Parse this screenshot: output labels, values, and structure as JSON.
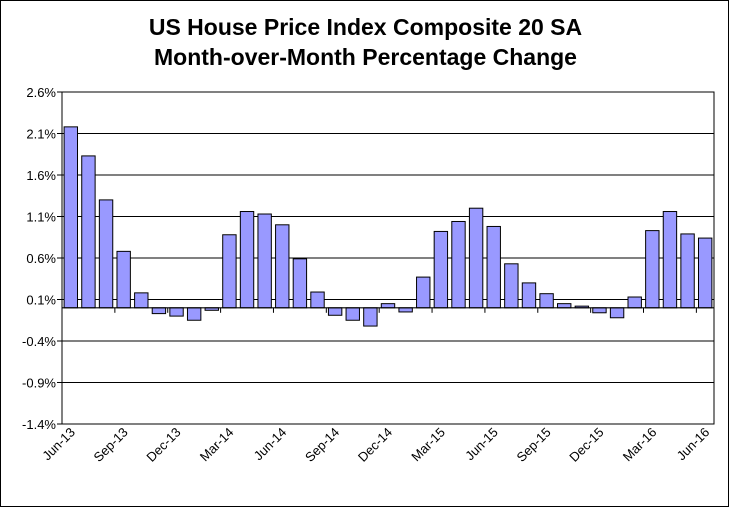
{
  "chart_data": {
    "type": "bar",
    "title": "US House Price Index Composite 20 SA",
    "subtitle": "Month-over-Month Percentage Change",
    "xlabel": "",
    "ylabel": "",
    "ylim": [
      -1.4,
      2.6
    ],
    "yticks": [
      "2.6%",
      "2.1%",
      "1.6%",
      "1.1%",
      "0.6%",
      "0.1%",
      "-0.4%",
      "-0.9%",
      "-1.4%"
    ],
    "xtick_labels": [
      "Jun-13",
      "Sep-13",
      "Dec-13",
      "Mar-14",
      "Jun-14",
      "Sep-14",
      "Dec-14",
      "Mar-15",
      "Jun-15",
      "Sep-15",
      "Dec-15",
      "Mar-16",
      "Jun-16"
    ],
    "grid": true,
    "bar_color": "#9999ff",
    "categories": [
      "Jun-13",
      "Jul-13",
      "Aug-13",
      "Sep-13",
      "Oct-13",
      "Nov-13",
      "Dec-13",
      "Jan-14",
      "Feb-14",
      "Mar-14",
      "Apr-14",
      "May-14",
      "Jun-14",
      "Jul-14",
      "Aug-14",
      "Sep-14",
      "Oct-14",
      "Nov-14",
      "Dec-14",
      "Jan-15",
      "Feb-15",
      "Mar-15",
      "Apr-15",
      "May-15",
      "Jun-15",
      "Jul-15",
      "Aug-15",
      "Sep-15",
      "Oct-15",
      "Nov-15",
      "Dec-15",
      "Jan-16",
      "Feb-16",
      "Mar-16",
      "Apr-16",
      "May-16",
      "Jun-16"
    ],
    "values": [
      2.18,
      1.83,
      1.3,
      0.68,
      0.18,
      -0.07,
      -0.1,
      -0.15,
      -0.03,
      0.88,
      1.16,
      1.13,
      1.0,
      0.59,
      0.19,
      -0.09,
      -0.15,
      -0.22,
      0.05,
      -0.05,
      0.37,
      0.92,
      1.04,
      1.2,
      0.98,
      0.53,
      0.3,
      0.17,
      0.05,
      0.02,
      -0.06,
      -0.12,
      0.13,
      0.93,
      1.16,
      0.89,
      0.84
    ]
  }
}
